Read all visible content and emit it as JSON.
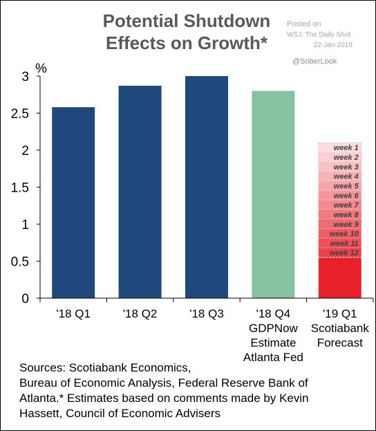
{
  "title_lines": [
    "Potential Shutdown",
    "Effects on Growth*"
  ],
  "posted": {
    "line1": "Posted on",
    "line2": "WSJ: The Daily Shot",
    "line3": "22-Jan-2019"
  },
  "handle": "@SoberLook",
  "sources_lines": [
    "Sources: Scotiabank Economics,",
    "Bureau of Economic Analysis, Federal Reserve Bank of",
    "Atlanta.* Estimates based on comments made by Kevin",
    "Hassett, Council of Economic Advisers"
  ],
  "colors": {
    "navy": "#1f497d",
    "green": "#86c1a0",
    "red": "#e8202a"
  },
  "chart_data": {
    "type": "bar",
    "ylabel": "%",
    "ylim": [
      0,
      3
    ],
    "yticks": [
      0,
      0.5,
      1,
      1.5,
      2,
      2.5,
      3
    ],
    "ytick_labels": [
      "0",
      "0.5",
      "1",
      "1.5",
      "2",
      "2.5",
      "3"
    ],
    "categories": [
      [
        "'18 Q1"
      ],
      [
        "'18 Q2"
      ],
      [
        "'18 Q3"
      ],
      [
        "'18 Q4",
        "GDPNow",
        "Estimate",
        "Atlanta Fed"
      ],
      [
        "'19 Q1",
        "Scotiabank",
        "Forecast"
      ]
    ],
    "values": [
      2.58,
      2.87,
      3.0,
      2.8,
      2.1
    ],
    "bar_colors": [
      "#1f497d",
      "#1f497d",
      "#1f497d",
      "#86c1a0",
      "stacked"
    ],
    "shutdown": {
      "total": 2.1,
      "base": 0.55,
      "base_color": "#e8202a",
      "weeks": [
        "week 1",
        "week 2",
        "week 3",
        "week 4",
        "week 5",
        "week 6",
        "week 7",
        "week 8",
        "week 9",
        "week 10",
        "week 11",
        "week 12"
      ]
    },
    "grid": false,
    "legend": "none"
  }
}
